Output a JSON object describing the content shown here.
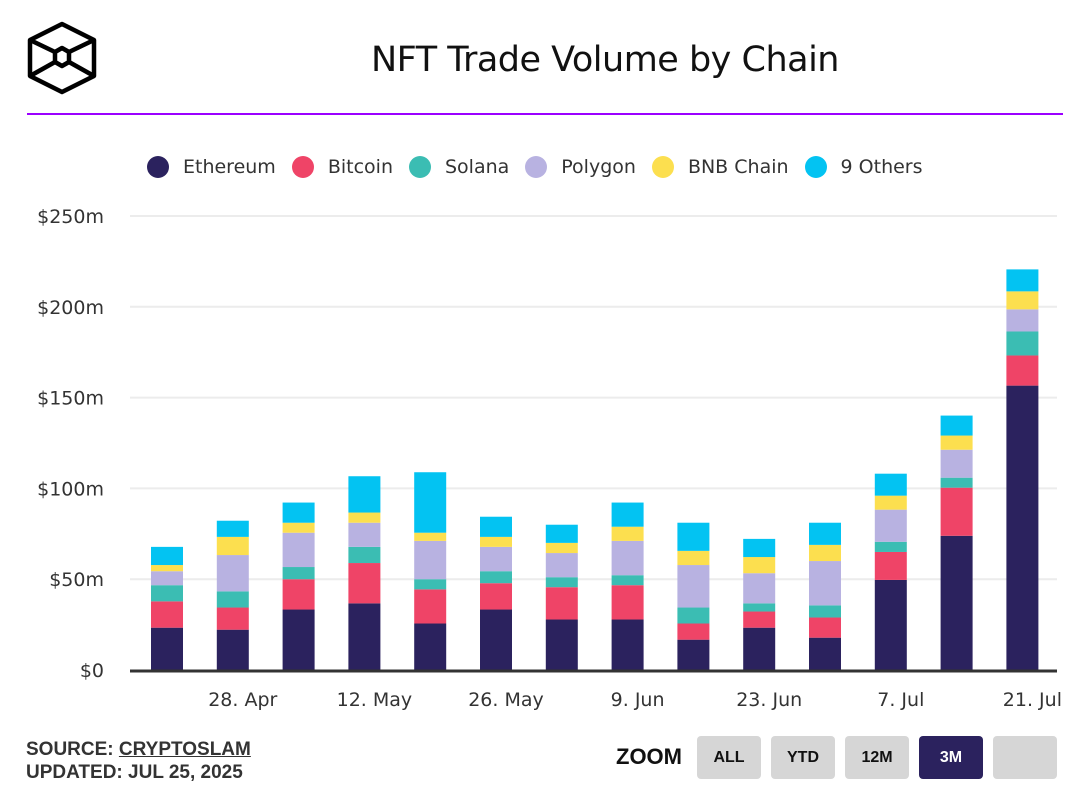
{
  "title": "NFT Trade Volume by Chain",
  "footer": {
    "source_label": "SOURCE:",
    "source_link": "CRYPTOSLAM",
    "updated": "UPDATED: JUL 25, 2025"
  },
  "zoom": {
    "label": "ZOOM",
    "buttons": [
      "ALL",
      "YTD",
      "12M",
      "3M",
      ""
    ],
    "active": "3M"
  },
  "chart_data": {
    "type": "bar",
    "stacked": true,
    "title": "NFT Trade Volume by Chain",
    "ylabel": "",
    "xlabel": "",
    "ylim": [
      0,
      250
    ],
    "yticks": [
      0,
      50,
      100,
      150,
      200,
      250
    ],
    "ytick_labels": [
      "$0",
      "$50m",
      "$100m",
      "$150m",
      "$200m",
      "$250m"
    ],
    "xtick_labels": [
      "28. Apr",
      "12. May",
      "26. May",
      "9. Jun",
      "23. Jun",
      "7. Jul",
      "21. Jul"
    ],
    "grid": true,
    "legend_position": "top",
    "bar_count": 14,
    "series": [
      {
        "name": "Ethereum",
        "color": "#2b225e",
        "values": [
          23.3,
          22.2,
          33.3,
          36.7,
          25.6,
          33.3,
          27.8,
          27.8,
          16.7,
          23.3,
          17.8,
          49.6,
          73.9,
          156.6
        ]
      },
      {
        "name": "Bitcoin",
        "color": "#ef4467",
        "values": [
          14.5,
          12.2,
          16.7,
          22.2,
          18.8,
          14.5,
          17.8,
          18.9,
          8.9,
          8.9,
          11.1,
          15.4,
          26.5,
          16.6
        ]
      },
      {
        "name": "Solana",
        "color": "#3bbdb3",
        "values": [
          8.9,
          8.9,
          6.7,
          8.9,
          5.6,
          6.6,
          5.5,
          5.5,
          8.8,
          4.5,
          6.7,
          5.6,
          5.5,
          13.2
        ]
      },
      {
        "name": "Polygon",
        "color": "#b8b2e1",
        "values": [
          7.7,
          20.0,
          18.9,
          13.3,
          21.1,
          13.4,
          13.3,
          18.9,
          23.4,
          16.6,
          24.4,
          17.7,
          15.4,
          12.2
        ]
      },
      {
        "name": "BNB Chain",
        "color": "#fcdf4f",
        "values": [
          3.4,
          10.0,
          5.5,
          5.6,
          4.5,
          5.5,
          5.6,
          7.8,
          7.8,
          8.9,
          8.9,
          7.7,
          7.8,
          9.9
        ]
      },
      {
        "name": "9 Others",
        "color": "#03c3f2",
        "values": [
          10.0,
          8.9,
          11.1,
          20.0,
          33.3,
          11.1,
          10.0,
          13.3,
          15.5,
          10.0,
          12.2,
          12.1,
          11.0,
          12.1
        ]
      }
    ]
  }
}
